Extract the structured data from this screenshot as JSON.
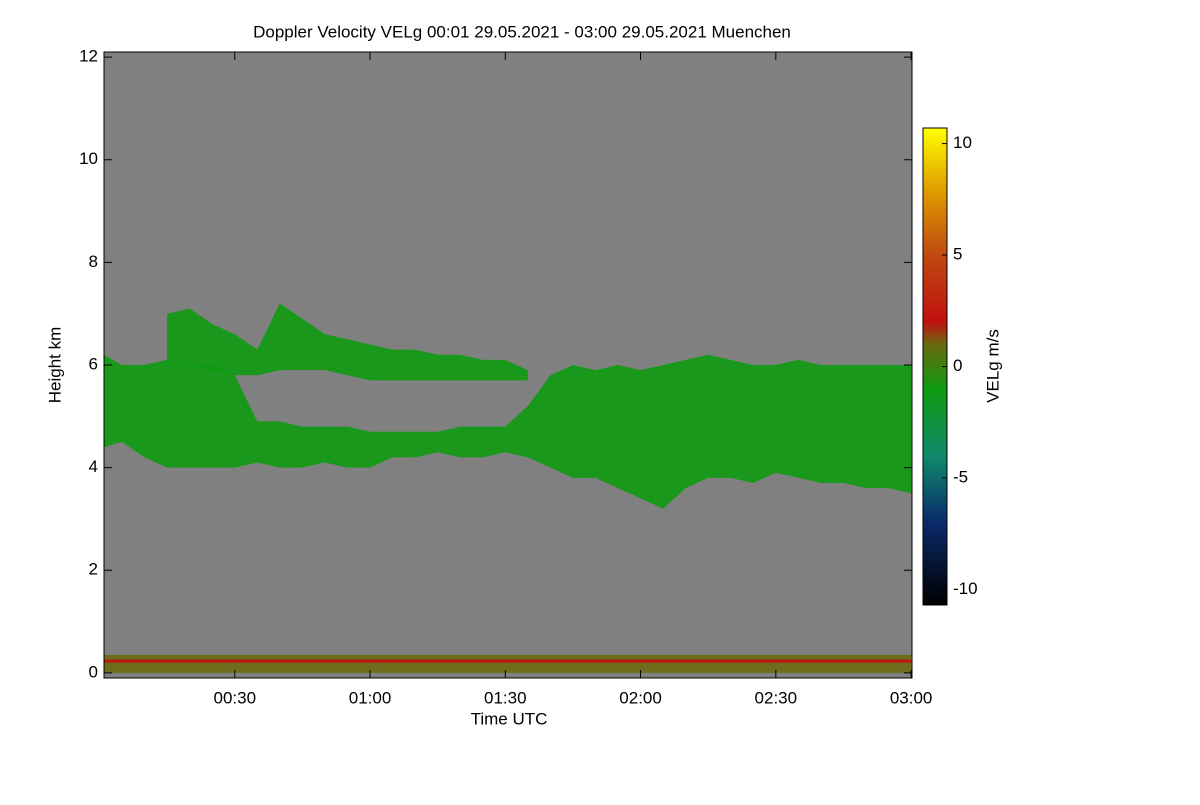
{
  "chart_data": {
    "type": "heatmap",
    "title": "Doppler Velocity VELg   00:01 29.05.2021 - 03:00 29.05.2021 Muenchen",
    "x_label": "Time UTC",
    "y_label": "Height km",
    "colorbar_label": "VELg m/s",
    "background": "#808080",
    "xlim": [
      1,
      180.2
    ],
    "xticks": [
      {
        "value": 30,
        "label": "00:30"
      },
      {
        "value": 60,
        "label": "01:00"
      },
      {
        "value": 90,
        "label": "01:30"
      },
      {
        "value": 120,
        "label": "02:00"
      },
      {
        "value": 150,
        "label": "02:30"
      },
      {
        "value": 180,
        "label": "03:00"
      }
    ],
    "ylim": [
      -0.1,
      12.1
    ],
    "yticks": [
      0,
      2,
      4,
      6,
      8,
      10,
      12
    ],
    "clim": [
      -10.7,
      10.7
    ],
    "cticks": [
      -10,
      -5,
      0,
      5,
      10
    ],
    "colormap": [
      {
        "value": -10.7,
        "color": "#000000"
      },
      {
        "value": -7,
        "color": "#0a2a6a"
      },
      {
        "value": -4,
        "color": "#0f8a6a"
      },
      {
        "value": -1,
        "color": "#0e9a10"
      },
      {
        "value": 1,
        "color": "#6a6a10"
      },
      {
        "value": 2,
        "color": "#c01010"
      },
      {
        "value": 5,
        "color": "#c04a10"
      },
      {
        "value": 8,
        "color": "#e0a000"
      },
      {
        "value": 10.7,
        "color": "#ffff00"
      }
    ],
    "layers": [
      {
        "velocity": -1,
        "x": [
          1,
          5,
          10,
          15,
          20,
          25,
          30,
          35,
          40,
          45,
          50,
          55,
          60,
          65,
          70,
          75,
          80,
          85,
          90,
          95,
          100,
          105,
          110,
          115,
          120,
          125,
          130,
          135,
          140,
          145,
          150,
          155,
          160,
          165,
          170,
          175,
          180
        ],
        "bottom": [
          4.4,
          4.5,
          4.2,
          4.0,
          4.0,
          4.0,
          4.0,
          4.1,
          4.0,
          4.0,
          4.1,
          4.0,
          4.0,
          4.2,
          4.2,
          4.3,
          4.2,
          4.2,
          4.3,
          4.2,
          4.0,
          3.8,
          3.8,
          3.6,
          3.4,
          3.2,
          3.6,
          3.8,
          3.8,
          3.7,
          3.9,
          3.8,
          3.7,
          3.7,
          3.6,
          3.6,
          3.5
        ],
        "top": [
          6.2,
          6.0,
          6.0,
          6.1,
          6.0,
          6.0,
          5.8,
          4.9,
          4.9,
          4.8,
          4.8,
          4.8,
          4.7,
          4.7,
          4.7,
          4.7,
          4.8,
          4.8,
          4.8,
          5.2,
          5.8,
          6.0,
          5.9,
          6.0,
          5.9,
          6.0,
          6.1,
          6.2,
          6.1,
          6.0,
          6.0,
          6.1,
          6.0,
          6.0,
          6.0,
          6.0,
          6.0
        ]
      },
      {
        "velocity": -1,
        "x": [
          15,
          20,
          25,
          30,
          35,
          40,
          45,
          50,
          55,
          60,
          65,
          70,
          75,
          80,
          85,
          90,
          95
        ],
        "bottom": [
          6.0,
          6.0,
          5.9,
          5.8,
          5.8,
          5.9,
          5.9,
          5.9,
          5.8,
          5.7,
          5.7,
          5.7,
          5.7,
          5.7,
          5.7,
          5.7,
          5.7
        ],
        "top": [
          7.0,
          7.1,
          6.8,
          6.6,
          6.3,
          7.2,
          6.9,
          6.6,
          6.5,
          6.4,
          6.3,
          6.3,
          6.2,
          6.2,
          6.1,
          6.1,
          5.9
        ]
      },
      {
        "velocity": 1,
        "x": [
          1,
          180
        ],
        "bottom": [
          0,
          0
        ],
        "top": [
          0.35,
          0.35
        ]
      },
      {
        "velocity": 2,
        "x": [
          1,
          180
        ],
        "bottom": [
          0.2,
          0.2
        ],
        "top": [
          0.26,
          0.26
        ]
      }
    ]
  }
}
